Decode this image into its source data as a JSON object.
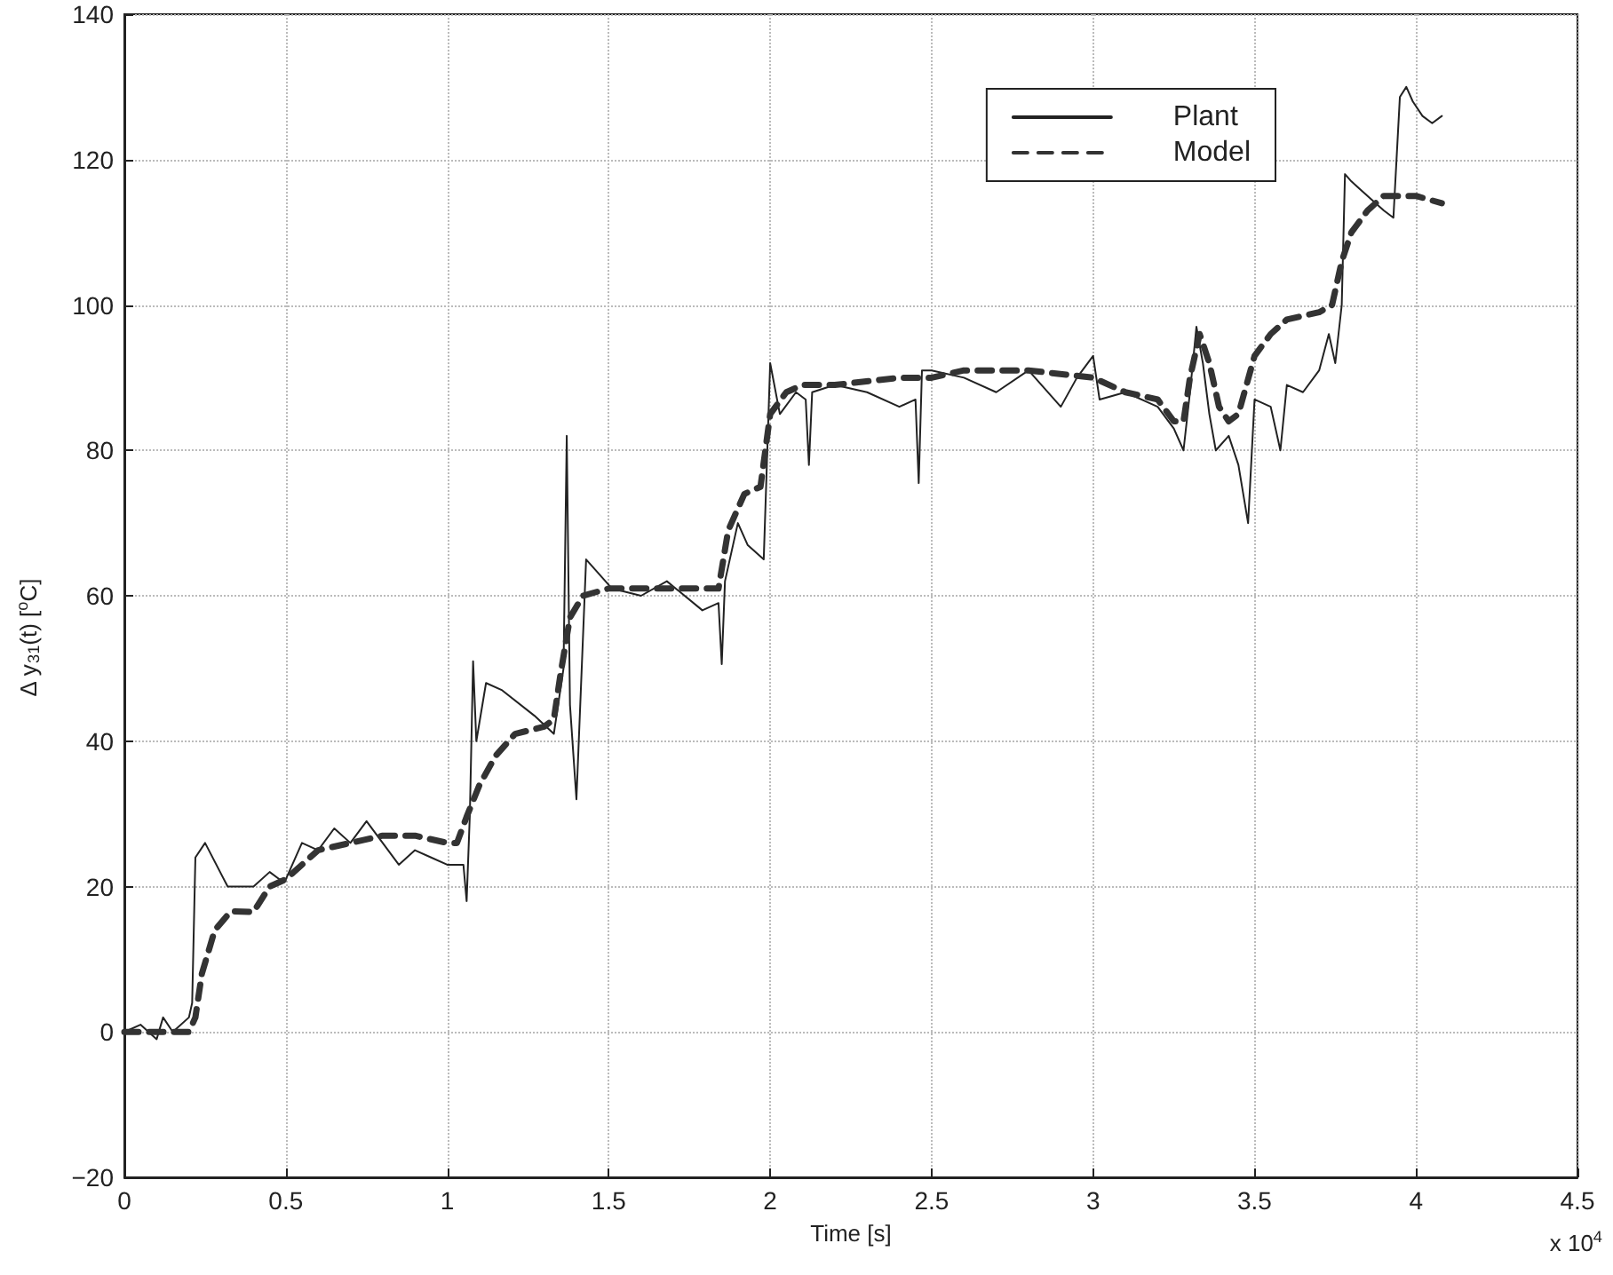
{
  "chart_data": {
    "type": "line",
    "xlabel": "Time [s]",
    "ylabel": "Δ y$_{31}$(t) [$^{o}$C]",
    "annotations": [
      "x 10$^{4}$"
    ],
    "xlim": [
      0,
      4.5
    ],
    "xticks": [
      0,
      0.5,
      1,
      1.5,
      2,
      2.5,
      3,
      3.5,
      4,
      4.5
    ],
    "ylim": [
      -20,
      140
    ],
    "yticks": [
      -20,
      0,
      20,
      40,
      60,
      80,
      100,
      120,
      140
    ],
    "grid": true,
    "legend": "top right",
    "marker": "none",
    "series": [
      {
        "name": "Plant",
        "color": "#222222",
        "line_style": "solid",
        "x": [
          0,
          0.05,
          0.1,
          0.12,
          0.15,
          0.2,
          0.21,
          0.22,
          0.25,
          0.32,
          0.4,
          0.45,
          0.48,
          0.5,
          0.55,
          0.6,
          0.65,
          0.7,
          0.75,
          0.8,
          0.85,
          0.9,
          0.95,
          1.0,
          1.05,
          1.06,
          1.07,
          1.08,
          1.09,
          1.12,
          1.17,
          1.27,
          1.33,
          1.36,
          1.37,
          1.38,
          1.4,
          1.43,
          1.46,
          1.51,
          1.6,
          1.68,
          1.79,
          1.84,
          1.85,
          1.86,
          1.9,
          1.93,
          1.98,
          2.0,
          2.03,
          2.08,
          2.11,
          2.12,
          2.13,
          2.2,
          2.3,
          2.4,
          2.45,
          2.46,
          2.47,
          2.5,
          2.6,
          2.7,
          2.8,
          2.9,
          2.95,
          3.0,
          3.02,
          3.1,
          3.2,
          3.25,
          3.28,
          3.3,
          3.32,
          3.34,
          3.36,
          3.38,
          3.42,
          3.45,
          3.48,
          3.5,
          3.55,
          3.58,
          3.6,
          3.65,
          3.7,
          3.73,
          3.75,
          3.77,
          3.78,
          3.8,
          3.85,
          3.9,
          3.93,
          3.95,
          3.97,
          3.99,
          4.02,
          4.05,
          4.08
        ],
        "values": [
          0,
          1,
          -1,
          2,
          0,
          2,
          4,
          24,
          26,
          20,
          20,
          22,
          21,
          21,
          26,
          25,
          28,
          26,
          29,
          26,
          23,
          25,
          24,
          23,
          23,
          18,
          30,
          51,
          40,
          48,
          47,
          43.5,
          41,
          50,
          82,
          45,
          32,
          65,
          63.5,
          61,
          60,
          62,
          58,
          59,
          50.6,
          62,
          70,
          67,
          65,
          92,
          85,
          88,
          87,
          78,
          88,
          89,
          88,
          86,
          87,
          75.5,
          91,
          91,
          90,
          88,
          91,
          86,
          90,
          93,
          87,
          88,
          86,
          83,
          80,
          88,
          97,
          92,
          85,
          80,
          82,
          78,
          70,
          87,
          86,
          80,
          89,
          88,
          91,
          96,
          92,
          100,
          118,
          117,
          115,
          113,
          112,
          128.6,
          130,
          128,
          126,
          125,
          126
        ]
      },
      {
        "name": "Model",
        "color": "#333333",
        "line_style": "dashed",
        "x": [
          0,
          0.2,
          0.22,
          0.24,
          0.28,
          0.33,
          0.4,
          0.45,
          0.5,
          0.6,
          0.7,
          0.8,
          0.9,
          1.0,
          1.03,
          1.06,
          1.1,
          1.15,
          1.21,
          1.3,
          1.33,
          1.35,
          1.38,
          1.42,
          1.5,
          1.7,
          1.84,
          1.87,
          1.92,
          1.97,
          2.0,
          2.05,
          2.1,
          2.2,
          2.4,
          2.5,
          2.6,
          2.8,
          3.0,
          3.1,
          3.2,
          3.25,
          3.28,
          3.3,
          3.33,
          3.36,
          3.39,
          3.42,
          3.45,
          3.5,
          3.55,
          3.6,
          3.7,
          3.74,
          3.77,
          3.8,
          3.85,
          3.9,
          4.0,
          4.08
        ],
        "values": [
          0,
          0,
          2,
          8,
          14,
          16.6,
          16.5,
          20,
          21,
          25,
          26,
          27,
          27,
          26,
          26,
          29.6,
          34,
          38,
          41,
          42,
          43,
          49,
          57,
          60,
          61,
          61,
          61,
          69,
          74,
          75,
          85,
          88,
          89,
          89,
          90,
          90,
          91,
          91,
          90,
          88,
          87,
          84,
          84,
          90,
          96,
          92,
          86,
          84,
          85,
          93,
          96,
          98,
          99,
          100,
          106,
          110,
          113,
          115,
          115,
          114
        ]
      }
    ]
  }
}
